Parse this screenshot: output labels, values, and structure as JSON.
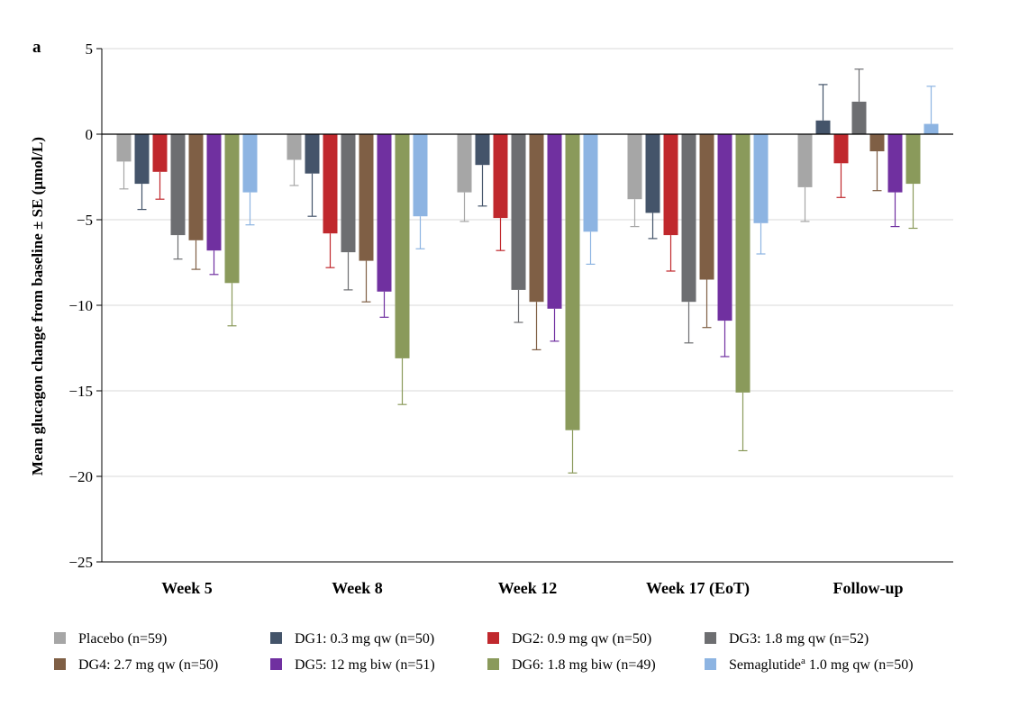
{
  "panel_label": "a",
  "chart_data": {
    "type": "bar",
    "title": "",
    "xlabel": "",
    "ylabel": "Mean glucagon change from baseline ± SE (μmol/L)",
    "ylim": [
      -25,
      5
    ],
    "yticks": [
      5,
      0,
      -5,
      -10,
      -15,
      -20,
      -25
    ],
    "ytick_labels": [
      "5",
      "0",
      "−5",
      "−10",
      "−15",
      "−20",
      "−25"
    ],
    "grid": true,
    "legend_position": "bottom",
    "error_bars": "SE",
    "categories": [
      "Week 5",
      "Week 8",
      "Week 12",
      "Week 17 (EoT)",
      "Follow-up"
    ],
    "series": [
      {
        "name": "Placebo (n=59)",
        "color": "#a6a6a6",
        "values": [
          -1.6,
          -1.5,
          -3.4,
          -3.8,
          -3.1
        ],
        "errors": [
          1.6,
          1.5,
          1.7,
          1.6,
          2.0
        ]
      },
      {
        "name": "DG1: 0.3 mg qw (n=50)",
        "color": "#44546a",
        "values": [
          -2.9,
          -2.3,
          -1.8,
          -4.6,
          0.8
        ],
        "errors": [
          1.5,
          2.5,
          2.4,
          1.5,
          2.1
        ]
      },
      {
        "name": "DG2: 0.9 mg qw (n=50)",
        "color": "#c0282d",
        "values": [
          -2.2,
          -5.8,
          -4.9,
          -5.9,
          -1.7
        ],
        "errors": [
          1.6,
          2.0,
          1.9,
          2.1,
          2.0
        ]
      },
      {
        "name": "DG3: 1.8 mg qw (n=52)",
        "color": "#6d6e71",
        "values": [
          -5.9,
          -6.9,
          -9.1,
          -9.8,
          1.9
        ],
        "errors": [
          1.4,
          2.2,
          1.9,
          2.4,
          1.9
        ]
      },
      {
        "name": "DG4: 2.7 mg qw (n=50)",
        "color": "#7f5f45",
        "values": [
          -6.2,
          -7.4,
          -9.8,
          -8.5,
          -1.0
        ],
        "errors": [
          1.7,
          2.4,
          2.8,
          2.8,
          2.3
        ]
      },
      {
        "name": "DG5: 12 mg biw (n=51)",
        "color": "#7030a0",
        "values": [
          -6.8,
          -9.2,
          -10.2,
          -10.9,
          -3.4
        ],
        "errors": [
          1.4,
          1.5,
          1.9,
          2.1,
          2.0
        ]
      },
      {
        "name": "DG6: 1.8 mg biw (n=49)",
        "color": "#8a9a5b",
        "values": [
          -8.7,
          -13.1,
          -17.3,
          -15.1,
          -2.9
        ],
        "errors": [
          2.5,
          2.7,
          2.5,
          3.4,
          2.6
        ]
      },
      {
        "name": "Semaglutide 1.0 mg qw (n=50)",
        "name_parts": [
          "Semaglutide",
          "a",
          " 1.0 mg qw (n=50)"
        ],
        "color": "#8db4e2",
        "values": [
          -3.4,
          -4.8,
          -5.7,
          -5.2,
          0.6
        ],
        "errors": [
          1.9,
          1.9,
          1.9,
          1.8,
          2.2
        ]
      }
    ]
  }
}
